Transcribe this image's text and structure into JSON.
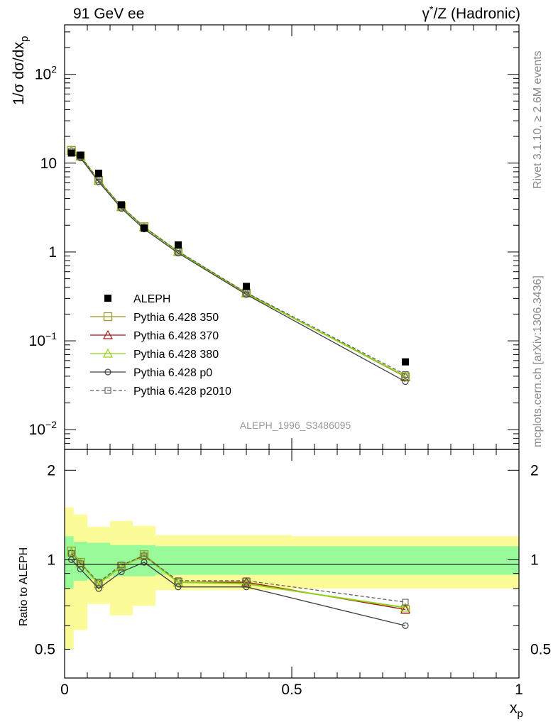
{
  "header": {
    "left_title": "91 GeV ee",
    "right_title_gamma": "γ",
    "right_title_star": "*",
    "right_title_rest": "/Z (Hadronic)"
  },
  "side_notes": {
    "rivet": "Rivet 3.1.10, ≥ 2.6M events",
    "mcplots": "mcplots.cern.ch [arXiv:1306.3436]"
  },
  "watermark": "ALEPH_1996_S3486095",
  "main_axes": {
    "ylabel_prefix": "1/σ dσ/dx",
    "ylabel_sub": "p",
    "ytick_labels": [
      {
        "base": "10",
        "exp": "−2",
        "value": 0.01
      },
      {
        "base": "10",
        "exp": "−1",
        "value": 0.1
      },
      {
        "base": "1",
        "exp": "",
        "value": 1
      },
      {
        "base": "10",
        "exp": "",
        "value": 10
      },
      {
        "base": "10",
        "exp": "2",
        "value": 100
      }
    ]
  },
  "ratio_axes": {
    "ylabel": "Ratio to ALEPH",
    "ytick_labels": [
      {
        "label": "0.5",
        "value": 0.5
      },
      {
        "label": "1",
        "value": 1
      },
      {
        "label": "2",
        "value": 2
      }
    ]
  },
  "x_axis": {
    "label": "x",
    "label_sub": "p",
    "tick_labels": [
      {
        "label": "0",
        "value": 0
      },
      {
        "label": "0.5",
        "value": 0.5
      },
      {
        "label": "1",
        "value": 1
      }
    ]
  },
  "legend": {
    "entries": [
      {
        "key": "data",
        "label": "ALEPH"
      },
      {
        "key": "p350",
        "label": "Pythia 6.428 350"
      },
      {
        "key": "p370",
        "label": "Pythia 6.428 370"
      },
      {
        "key": "p380",
        "label": "Pythia 6.428 380"
      },
      {
        "key": "p0",
        "label": "Pythia 6.428 p0"
      },
      {
        "key": "p2010",
        "label": "Pythia 6.428 p2010"
      }
    ]
  },
  "colors": {
    "data": "#000000",
    "p350": "#9a9a2a",
    "p370": "#a01818",
    "p380": "#8fd018",
    "p0": "#404040",
    "p2010": "#606060",
    "band_inner": "#98fa98",
    "band_outer": "#fbfb98"
  },
  "chart_data": {
    "type": "scatter",
    "x": [
      0.015,
      0.035,
      0.075,
      0.125,
      0.175,
      0.25,
      0.4,
      0.75
    ],
    "xlim": [
      0,
      1
    ],
    "ylim_main": [
      0.006,
      360
    ],
    "yscale_main": "log",
    "ylim_ratio": [
      0.4,
      2.35
    ],
    "yscale_ratio": "log",
    "bin_edges": [
      0.0,
      0.02,
      0.05,
      0.1,
      0.15,
      0.2,
      0.3,
      0.5,
      1.0
    ],
    "data": {
      "name": "ALEPH",
      "values": [
        13.0,
        12.3,
        7.7,
        3.4,
        1.85,
        1.2,
        0.41,
        0.058
      ]
    },
    "band_inner_rel": [
      0.2,
      0.15,
      0.14,
      0.12,
      0.12,
      0.11,
      0.11,
      0.11
    ],
    "band_outer_rel": [
      0.5,
      0.42,
      0.29,
      0.35,
      0.3,
      0.21,
      0.21,
      0.2
    ],
    "series": [
      {
        "key": "p350",
        "name": "Pythia 6.428 350",
        "ratio": [
          1.07,
          0.98,
          0.83,
          0.95,
          1.04,
          0.84,
          0.84,
          0.68
        ]
      },
      {
        "key": "p370",
        "name": "Pythia 6.428 370",
        "ratio": [
          1.06,
          0.97,
          0.83,
          0.95,
          1.03,
          0.84,
          0.84,
          0.68
        ]
      },
      {
        "key": "p380",
        "name": "Pythia 6.428 380",
        "ratio": [
          1.06,
          0.97,
          0.83,
          0.95,
          1.03,
          0.84,
          0.83,
          0.69
        ]
      },
      {
        "key": "p0",
        "name": "Pythia 6.428 p0",
        "ratio": [
          1.0,
          0.93,
          0.8,
          0.91,
          0.98,
          0.81,
          0.81,
          0.6
        ]
      },
      {
        "key": "p2010",
        "name": "Pythia 6.428 p2010",
        "ratio": [
          1.05,
          0.97,
          0.84,
          0.96,
          1.03,
          0.85,
          0.85,
          0.72
        ]
      }
    ],
    "legend_position": "middle-left",
    "grid": false
  }
}
